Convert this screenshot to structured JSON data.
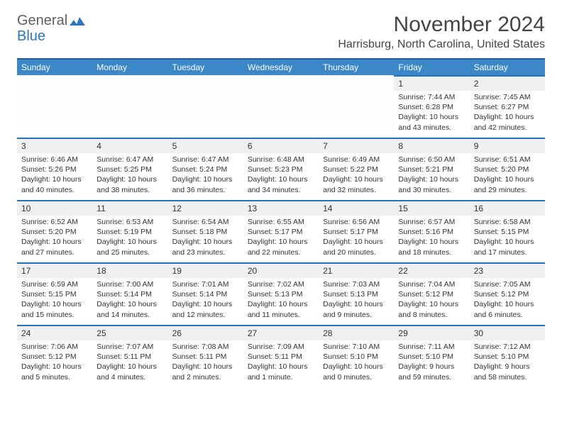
{
  "logo": {
    "text1": "General",
    "text2": "Blue"
  },
  "title": "November 2024",
  "location": "Harrisburg, North Carolina, United States",
  "colors": {
    "header_bg": "#3b87c8",
    "header_border": "#1f5d99",
    "daynum_bg": "#eef0f2",
    "day_border": "#2b72b5",
    "logo_gray": "#5f5f5f",
    "logo_blue": "#2f76b8"
  },
  "weekdays": [
    "Sunday",
    "Monday",
    "Tuesday",
    "Wednesday",
    "Thursday",
    "Friday",
    "Saturday"
  ],
  "weeks": [
    [
      {
        "empty": true
      },
      {
        "empty": true
      },
      {
        "empty": true
      },
      {
        "empty": true
      },
      {
        "empty": true
      },
      {
        "n": "1",
        "sunrise": "Sunrise: 7:44 AM",
        "sunset": "Sunset: 6:28 PM",
        "daylight": "Daylight: 10 hours and 43 minutes."
      },
      {
        "n": "2",
        "sunrise": "Sunrise: 7:45 AM",
        "sunset": "Sunset: 6:27 PM",
        "daylight": "Daylight: 10 hours and 42 minutes."
      }
    ],
    [
      {
        "n": "3",
        "sunrise": "Sunrise: 6:46 AM",
        "sunset": "Sunset: 5:26 PM",
        "daylight": "Daylight: 10 hours and 40 minutes."
      },
      {
        "n": "4",
        "sunrise": "Sunrise: 6:47 AM",
        "sunset": "Sunset: 5:25 PM",
        "daylight": "Daylight: 10 hours and 38 minutes."
      },
      {
        "n": "5",
        "sunrise": "Sunrise: 6:47 AM",
        "sunset": "Sunset: 5:24 PM",
        "daylight": "Daylight: 10 hours and 36 minutes."
      },
      {
        "n": "6",
        "sunrise": "Sunrise: 6:48 AM",
        "sunset": "Sunset: 5:23 PM",
        "daylight": "Daylight: 10 hours and 34 minutes."
      },
      {
        "n": "7",
        "sunrise": "Sunrise: 6:49 AM",
        "sunset": "Sunset: 5:22 PM",
        "daylight": "Daylight: 10 hours and 32 minutes."
      },
      {
        "n": "8",
        "sunrise": "Sunrise: 6:50 AM",
        "sunset": "Sunset: 5:21 PM",
        "daylight": "Daylight: 10 hours and 30 minutes."
      },
      {
        "n": "9",
        "sunrise": "Sunrise: 6:51 AM",
        "sunset": "Sunset: 5:20 PM",
        "daylight": "Daylight: 10 hours and 29 minutes."
      }
    ],
    [
      {
        "n": "10",
        "sunrise": "Sunrise: 6:52 AM",
        "sunset": "Sunset: 5:20 PM",
        "daylight": "Daylight: 10 hours and 27 minutes."
      },
      {
        "n": "11",
        "sunrise": "Sunrise: 6:53 AM",
        "sunset": "Sunset: 5:19 PM",
        "daylight": "Daylight: 10 hours and 25 minutes."
      },
      {
        "n": "12",
        "sunrise": "Sunrise: 6:54 AM",
        "sunset": "Sunset: 5:18 PM",
        "daylight": "Daylight: 10 hours and 23 minutes."
      },
      {
        "n": "13",
        "sunrise": "Sunrise: 6:55 AM",
        "sunset": "Sunset: 5:17 PM",
        "daylight": "Daylight: 10 hours and 22 minutes."
      },
      {
        "n": "14",
        "sunrise": "Sunrise: 6:56 AM",
        "sunset": "Sunset: 5:17 PM",
        "daylight": "Daylight: 10 hours and 20 minutes."
      },
      {
        "n": "15",
        "sunrise": "Sunrise: 6:57 AM",
        "sunset": "Sunset: 5:16 PM",
        "daylight": "Daylight: 10 hours and 18 minutes."
      },
      {
        "n": "16",
        "sunrise": "Sunrise: 6:58 AM",
        "sunset": "Sunset: 5:15 PM",
        "daylight": "Daylight: 10 hours and 17 minutes."
      }
    ],
    [
      {
        "n": "17",
        "sunrise": "Sunrise: 6:59 AM",
        "sunset": "Sunset: 5:15 PM",
        "daylight": "Daylight: 10 hours and 15 minutes."
      },
      {
        "n": "18",
        "sunrise": "Sunrise: 7:00 AM",
        "sunset": "Sunset: 5:14 PM",
        "daylight": "Daylight: 10 hours and 14 minutes."
      },
      {
        "n": "19",
        "sunrise": "Sunrise: 7:01 AM",
        "sunset": "Sunset: 5:14 PM",
        "daylight": "Daylight: 10 hours and 12 minutes."
      },
      {
        "n": "20",
        "sunrise": "Sunrise: 7:02 AM",
        "sunset": "Sunset: 5:13 PM",
        "daylight": "Daylight: 10 hours and 11 minutes."
      },
      {
        "n": "21",
        "sunrise": "Sunrise: 7:03 AM",
        "sunset": "Sunset: 5:13 PM",
        "daylight": "Daylight: 10 hours and 9 minutes."
      },
      {
        "n": "22",
        "sunrise": "Sunrise: 7:04 AM",
        "sunset": "Sunset: 5:12 PM",
        "daylight": "Daylight: 10 hours and 8 minutes."
      },
      {
        "n": "23",
        "sunrise": "Sunrise: 7:05 AM",
        "sunset": "Sunset: 5:12 PM",
        "daylight": "Daylight: 10 hours and 6 minutes."
      }
    ],
    [
      {
        "n": "24",
        "sunrise": "Sunrise: 7:06 AM",
        "sunset": "Sunset: 5:12 PM",
        "daylight": "Daylight: 10 hours and 5 minutes."
      },
      {
        "n": "25",
        "sunrise": "Sunrise: 7:07 AM",
        "sunset": "Sunset: 5:11 PM",
        "daylight": "Daylight: 10 hours and 4 minutes."
      },
      {
        "n": "26",
        "sunrise": "Sunrise: 7:08 AM",
        "sunset": "Sunset: 5:11 PM",
        "daylight": "Daylight: 10 hours and 2 minutes."
      },
      {
        "n": "27",
        "sunrise": "Sunrise: 7:09 AM",
        "sunset": "Sunset: 5:11 PM",
        "daylight": "Daylight: 10 hours and 1 minute."
      },
      {
        "n": "28",
        "sunrise": "Sunrise: 7:10 AM",
        "sunset": "Sunset: 5:10 PM",
        "daylight": "Daylight: 10 hours and 0 minutes."
      },
      {
        "n": "29",
        "sunrise": "Sunrise: 7:11 AM",
        "sunset": "Sunset: 5:10 PM",
        "daylight": "Daylight: 9 hours and 59 minutes."
      },
      {
        "n": "30",
        "sunrise": "Sunrise: 7:12 AM",
        "sunset": "Sunset: 5:10 PM",
        "daylight": "Daylight: 9 hours and 58 minutes."
      }
    ]
  ]
}
